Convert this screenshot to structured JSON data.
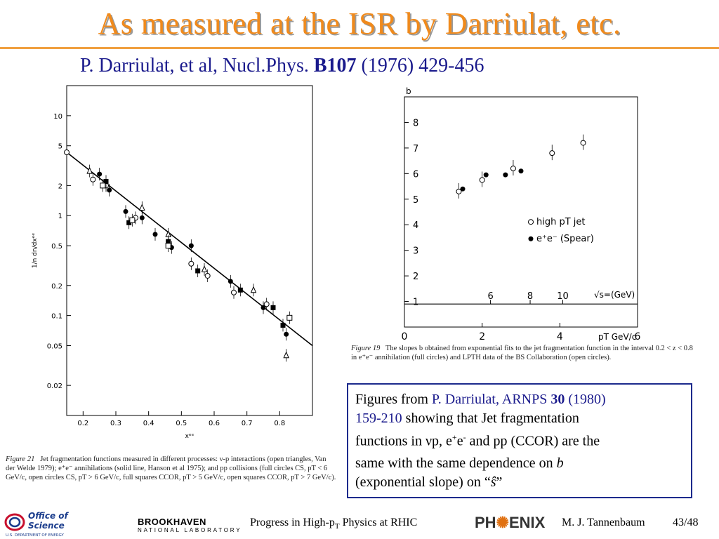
{
  "slide": {
    "title": "As measured at the ISR by Darriulat, etc.",
    "citation_prefix": "P. Darriulat, et al,  Nucl.Phys. ",
    "citation_volume": "B107",
    "citation_suffix": " (1976) 429-456"
  },
  "fig21": {
    "caption_label": "Figure 21",
    "caption_text": "Jet fragmentation functions measured in different processes: ν-p interactions (open triangles, Van der Welde 1979); e⁺e⁻ annihilations (solid line, Hanson et al 1975); and pp collisions (full circles CS, pT < 6 GeV/c, open circles CS, pT > 6 GeV/c, full squares CCOR, pT > 5 GeV/c, open squares CCOR, pT > 7 GeV/c)."
  },
  "fig19": {
    "caption_label": "Figure 19",
    "caption_text": "The slopes b obtained from exponential fits to the jet fragmentation function in the interval 0.2 < z < 0.8 in e⁺e⁻ annihilation (full circles) and LPTH data of the BS Collaboration (open circles)."
  },
  "info_box": {
    "line1_prefix": "Figures from ",
    "ref_text": "P. Darriulat, ARNPS ",
    "ref_volume": "30",
    "ref_year": " (1980)",
    "ref_pages": "159-210",
    "line2_rest": " showing that Jet fragmentation",
    "line3_a": "functions in νp, e",
    "line3_b": "+",
    "line3_c": "e",
    "line3_d": "-",
    "line3_e": " and pp (CCOR) are the",
    "line4": "same with the same dependence on ",
    "line4_var": "b",
    "line5_a": "(exponential slope) on “",
    "line5_var": "ŝ",
    "line5_b": "”"
  },
  "footer": {
    "office_line1": "Office of",
    "office_line2": "Science",
    "office_line3": "U.S. DEPARTMENT OF ENERGY",
    "bnl_big": "BROOKHAVEN",
    "bnl_small": "NATIONAL LABORATORY",
    "progress_a": "Progress in High-p",
    "progress_sub": "T",
    "progress_b": " Physics at RHIC",
    "phenix_a": "PH",
    "phenix_b": "ENIX",
    "author": "M. J. Tannenbaum",
    "page": "43/48"
  },
  "chart_data": [
    {
      "type": "scatter",
      "xlabel": "xᵉᵉ",
      "ylabel": "1/n  dn/dxᵉᵉ",
      "log_y": true,
      "xlim": [
        0.15,
        0.9
      ],
      "ylim": [
        0.01,
        20
      ],
      "xticks": [
        "0.2",
        "0.3",
        "0.4",
        "0.5",
        "0.6",
        "0.7",
        "0.8"
      ],
      "yticks": [
        "0.02",
        "0.05",
        "0.1",
        "0.2",
        "0.5",
        "1",
        "2",
        "5",
        "10"
      ],
      "line": {
        "name": "",
        "x": [
          0.15,
          0.9
        ],
        "y": [
          4.3,
          0.05
        ]
      },
      "series": [
        {
          "marker": "open-triangle",
          "points": [
            [
              0.22,
              2.8
            ],
            [
              0.38,
              1.2
            ],
            [
              0.46,
              0.65
            ],
            [
              0.57,
              0.29
            ],
            [
              0.72,
              0.18
            ],
            [
              0.82,
              0.04
            ]
          ]
        },
        {
          "marker": "full-circle",
          "points": [
            [
              0.25,
              2.6
            ],
            [
              0.28,
              1.8
            ],
            [
              0.33,
              1.1
            ],
            [
              0.38,
              0.95
            ],
            [
              0.42,
              0.65
            ],
            [
              0.47,
              0.48
            ],
            [
              0.53,
              0.5
            ],
            [
              0.65,
              0.22
            ],
            [
              0.75,
              0.12
            ],
            [
              0.82,
              0.065
            ]
          ]
        },
        {
          "marker": "open-circle",
          "points": [
            [
              0.15,
              4.3
            ],
            [
              0.23,
              2.3
            ],
            [
              0.27,
              2.0
            ],
            [
              0.36,
              0.95
            ],
            [
              0.53,
              0.33
            ],
            [
              0.58,
              0.25
            ],
            [
              0.66,
              0.17
            ],
            [
              0.76,
              0.13
            ]
          ]
        },
        {
          "marker": "full-square",
          "points": [
            [
              0.27,
              2.2
            ],
            [
              0.34,
              0.85
            ],
            [
              0.46,
              0.55
            ],
            [
              0.55,
              0.28
            ],
            [
              0.68,
              0.18
            ],
            [
              0.78,
              0.12
            ],
            [
              0.81,
              0.08
            ]
          ]
        },
        {
          "marker": "open-square",
          "points": [
            [
              0.26,
              2.0
            ],
            [
              0.35,
              0.9
            ],
            [
              0.46,
              0.5
            ],
            [
              0.83,
              0.095
            ]
          ]
        }
      ]
    },
    {
      "type": "scatter",
      "xlabel": "pT GeV/c",
      "ylabel": "b",
      "xlim": [
        0,
        6
      ],
      "ylim": [
        0,
        9
      ],
      "xticks": [
        "0",
        "2",
        "4",
        "6"
      ],
      "yticks": [
        "1",
        "2",
        "3",
        "4",
        "5",
        "6",
        "7",
        "8"
      ],
      "top_axis_label": "√s=(GeV)",
      "top_axis_ticks": [
        "6",
        "8",
        "10"
      ],
      "legend": {
        "position": "center-right",
        "entries": [
          "high pT jet",
          "e⁺e⁻ (Spear)"
        ]
      },
      "series": [
        {
          "name": "high pT jet",
          "marker": "open-circle",
          "points": [
            [
              1.4,
              5.3
            ],
            [
              2.0,
              5.75
            ],
            [
              2.8,
              6.2
            ],
            [
              3.8,
              6.8
            ],
            [
              4.6,
              7.2
            ]
          ]
        },
        {
          "name": "e⁺e⁻ (Spear)",
          "marker": "full-circle",
          "points": [
            [
              1.5,
              5.4
            ],
            [
              2.1,
              5.95
            ],
            [
              2.6,
              5.95
            ],
            [
              3.0,
              6.1
            ]
          ]
        }
      ]
    }
  ]
}
